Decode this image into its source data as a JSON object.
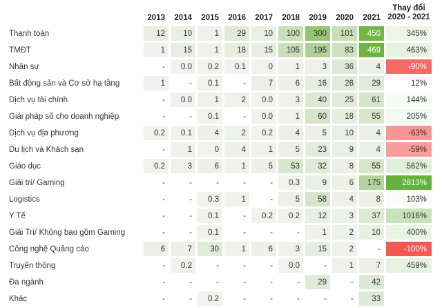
{
  "chart_data": {
    "type": "heatmap",
    "title": "",
    "columns": [
      "2013",
      "2014",
      "2015",
      "2016",
      "2017",
      "2018",
      "2019",
      "2020",
      "2021"
    ],
    "change_column_header": "Thay đổi\n2020 - 2021",
    "rows": [
      {
        "label": "Thanh toán",
        "values": [
          "12",
          "10",
          "1",
          "29",
          "10",
          "100",
          "300",
          "101",
          "450"
        ],
        "change": "345%"
      },
      {
        "label": "TMĐT",
        "values": [
          "1",
          "15",
          "1",
          "18",
          "15",
          "105",
          "195",
          "83",
          "469"
        ],
        "change": "463%"
      },
      {
        "label": "Nhân sự",
        "values": [
          "-",
          "0.0",
          "0.2",
          "0.1",
          "0",
          "1",
          "3",
          "36",
          "4"
        ],
        "change": "-90%"
      },
      {
        "label": "Bất động sản và Cơ sở hạ tầng",
        "values": [
          "1",
          "-",
          "0.1",
          "-",
          "7",
          "6",
          "16",
          "26",
          "29"
        ],
        "change": "12%"
      },
      {
        "label": "Dịch vụ tài chính",
        "values": [
          "-",
          "0.0",
          "1",
          "2",
          "0.0",
          "3",
          "40",
          "25",
          "61"
        ],
        "change": "144%"
      },
      {
        "label": "Giải pháp số cho doanh nghiệp",
        "values": [
          "-",
          "-",
          "0.1",
          "-",
          "0.0",
          "1",
          "60",
          "18",
          "55"
        ],
        "change": "205%"
      },
      {
        "label": "Dịch vụ địa phương",
        "values": [
          "0.2",
          "0.1",
          "4",
          "2",
          "0.2",
          "4",
          "5",
          "10",
          "4"
        ],
        "change": "-63%"
      },
      {
        "label": "Du lịch và Khách sạn",
        "values": [
          "-",
          "1",
          "0",
          "4",
          "1",
          "5",
          "23",
          "9",
          "4"
        ],
        "change": "-59%"
      },
      {
        "label": "Giáo dục",
        "values": [
          "0.2",
          "3",
          "6",
          "1",
          "5",
          "53",
          "32",
          "8",
          "55"
        ],
        "change": "562%"
      },
      {
        "label": "Giải trí/ Gaming",
        "values": [
          "-",
          "-",
          "-",
          "-",
          "-",
          "0.3",
          "9",
          "6",
          "175"
        ],
        "change": "2813%"
      },
      {
        "label": "Logistics",
        "values": [
          "-",
          "-",
          "0.3",
          "1",
          "-",
          "5",
          "58",
          "4",
          "8"
        ],
        "change": "103%"
      },
      {
        "label": "Y Tế",
        "values": [
          "-",
          "-",
          "0.1",
          "-",
          "0.2",
          "0.2",
          "12",
          "3",
          "37"
        ],
        "change": "1016%"
      },
      {
        "label": "Giải Trí/ Không bao gồm Gaming",
        "values": [
          "-",
          "-",
          "0.1",
          "-",
          "-",
          "-",
          "1",
          "2",
          "10"
        ],
        "change": "400%"
      },
      {
        "label": "Công nghệ Quảng cáo",
        "values": [
          "6",
          "7",
          "30",
          "1",
          "6",
          "3",
          "15",
          "2",
          "-"
        ],
        "change": "-100%"
      },
      {
        "label": "Truyền thông",
        "values": [
          "-",
          "0.2",
          "-",
          "-",
          "-",
          "0.0",
          "-",
          "1",
          "7"
        ],
        "change": "459%"
      },
      {
        "label": "Đa ngành",
        "values": [
          "-",
          "-",
          "-",
          "-",
          "-",
          "-",
          "29",
          "-",
          "42"
        ],
        "change": ""
      },
      {
        "label": "Khác",
        "values": [
          "-",
          "-",
          "0.2",
          "-",
          "-",
          "-",
          "-",
          "-",
          "33"
        ],
        "change": ""
      }
    ],
    "layout_hints": {
      "no_data_marker": "-",
      "value_scale_max": 470,
      "positive_change_scale_max": 2813,
      "negative_change_scale_max": 100
    }
  },
  "colors": {
    "heat_green_max": "#6fb441",
    "heat_neutral": "#f1f2ee",
    "change_green_max": "#66b13c",
    "change_red_max": "#f25955",
    "change_neutral": "#ffffff",
    "text_dark": "#333333",
    "text_light": "#ffffff",
    "header_text": "#1f1f1f"
  }
}
